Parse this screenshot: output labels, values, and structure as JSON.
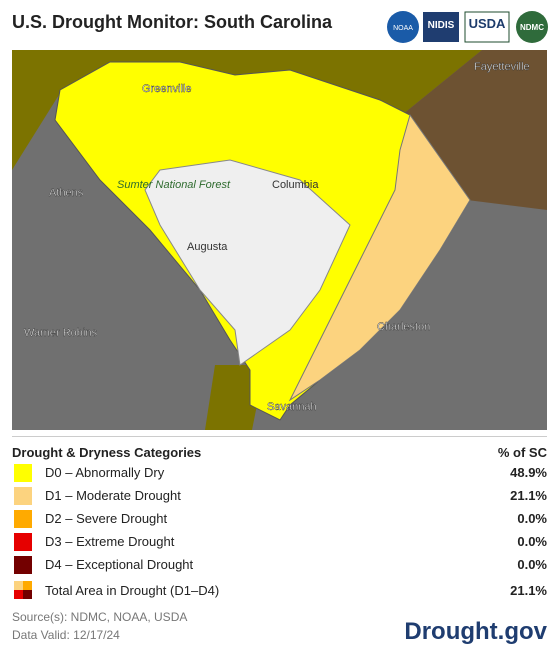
{
  "header": {
    "title": "U.S. Drought Monitor: South Carolina",
    "logos": [
      "NOAA",
      "NIDIS",
      "USDA",
      "NDMC"
    ]
  },
  "map": {
    "labels": [
      "Greenville",
      "Columbia",
      "Augusta",
      "Charleston",
      "Savannah",
      "Athens",
      "Warner Robins",
      "Fayetteville",
      "Sumter National Forest"
    ]
  },
  "legend": {
    "heading": "Drought & Dryness Categories",
    "value_heading": "% of SC",
    "rows": [
      {
        "label": "D0 – Abnormally Dry",
        "value": "48.9%",
        "color": "#ffff00"
      },
      {
        "label": "D1 – Moderate Drought",
        "value": "21.1%",
        "color": "#fcd37f"
      },
      {
        "label": "D2 – Severe Drought",
        "value": "0.0%",
        "color": "#ffaa00"
      },
      {
        "label": "D3 – Extreme Drought",
        "value": "0.0%",
        "color": "#e60000"
      },
      {
        "label": "D4 – Exceptional Drought",
        "value": "0.0%",
        "color": "#730000"
      }
    ],
    "total": {
      "label": "Total Area in Drought (D1–D4)",
      "value": "21.1%"
    }
  },
  "footer": {
    "sources": "Source(s): NDMC, NOAA, USDA",
    "valid": "Data Valid: 12/17/24",
    "brand": "Drought.gov"
  }
}
